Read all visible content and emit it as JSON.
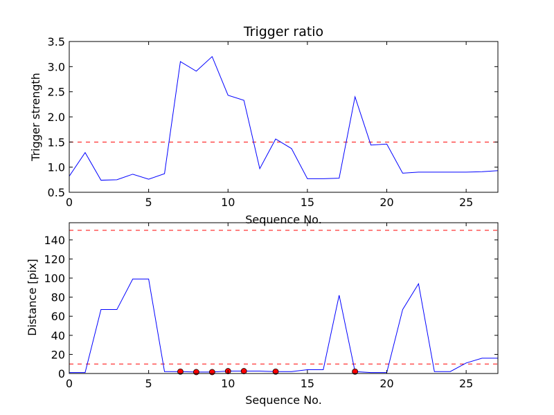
{
  "chart_data": [
    {
      "type": "line",
      "title": "Trigger ratio",
      "xlabel": "Sequence No.",
      "ylabel": "Trigger strength",
      "xlim": [
        0,
        27
      ],
      "ylim": [
        0.5,
        3.5
      ],
      "xticks": [
        0,
        5,
        10,
        15,
        20,
        25
      ],
      "yticks": [
        0.5,
        1.0,
        1.5,
        2.0,
        2.5,
        3.0,
        3.5
      ],
      "ytick_labels": [
        "0.5",
        "1.0",
        "1.5",
        "2.0",
        "2.5",
        "3.0",
        "3.5"
      ],
      "grid": false,
      "series": [
        {
          "color": "#0000ff",
          "style": "solid",
          "x": [
            0,
            1,
            2,
            3,
            4,
            5,
            6,
            7,
            8,
            9,
            10,
            11,
            12,
            13,
            14,
            15,
            16,
            17,
            18,
            19,
            20,
            21,
            22,
            23,
            24,
            25,
            26,
            27
          ],
          "y": [
            0.82,
            1.29,
            0.74,
            0.75,
            0.86,
            0.76,
            0.87,
            3.1,
            2.91,
            3.2,
            2.43,
            2.33,
            0.97,
            1.56,
            1.37,
            0.77,
            0.77,
            0.78,
            2.4,
            1.44,
            1.46,
            0.88,
            0.9,
            0.9,
            0.9,
            0.9,
            0.91,
            0.93
          ]
        }
      ],
      "reference_lines": [
        {
          "y": 1.5,
          "color": "#ff0000",
          "style": "dashed"
        }
      ]
    },
    {
      "type": "line",
      "title": "",
      "xlabel": "Sequence No.",
      "ylabel": "Distance [pix]",
      "xlim": [
        0,
        27
      ],
      "ylim": [
        0,
        158
      ],
      "xticks": [
        0,
        5,
        10,
        15,
        20,
        25
      ],
      "yticks": [
        0,
        20,
        40,
        60,
        80,
        100,
        120,
        140
      ],
      "ytick_labels": [
        "0",
        "20",
        "40",
        "60",
        "80",
        "100",
        "120",
        "140"
      ],
      "grid": false,
      "series": [
        {
          "color": "#0000ff",
          "style": "solid",
          "x": [
            0,
            1,
            2,
            3,
            4,
            5,
            6,
            7,
            8,
            9,
            10,
            11,
            12,
            13,
            14,
            15,
            16,
            17,
            18,
            19,
            20,
            21,
            22,
            23,
            24,
            25,
            26,
            27
          ],
          "y": [
            1,
            1,
            67,
            67,
            99,
            99,
            2,
            2,
            1.5,
            1.5,
            2.5,
            2.5,
            2.5,
            2,
            2,
            4,
            4,
            82,
            2,
            1,
            1,
            67,
            94,
            2,
            2,
            11,
            16,
            16
          ]
        }
      ],
      "markers": {
        "color": "#ff0000",
        "x": [
          7,
          8,
          9,
          10,
          11,
          13,
          18
        ],
        "y": [
          2,
          1.5,
          1.5,
          2.5,
          2.5,
          2,
          2
        ]
      },
      "reference_lines": [
        {
          "y": 150,
          "color": "#ff0000",
          "style": "dashed"
        },
        {
          "y": 10,
          "color": "#ff0000",
          "style": "dashed"
        }
      ]
    }
  ]
}
